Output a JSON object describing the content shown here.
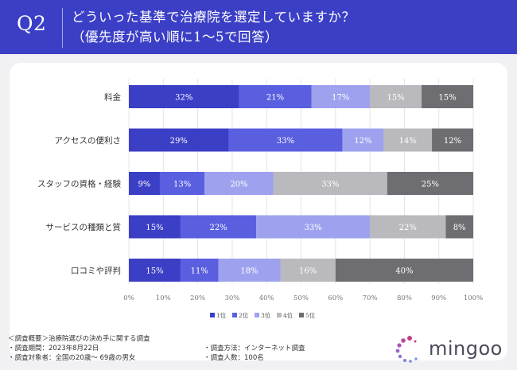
{
  "header": {
    "q_label": "Q2",
    "title_line1": "どういった基準で治療院を選定していますか？",
    "title_line2": "（優先度が高い順に1〜5で回答）"
  },
  "colors": {
    "header_bg": "#3b3fc6",
    "rank1": "#3b3fc6",
    "rank2": "#5a5fe0",
    "rank3": "#9ea2ee",
    "rank4": "#b9b9be",
    "rank5": "#6e6e72"
  },
  "chart_data": {
    "type": "bar",
    "orientation": "horizontal",
    "stacked": true,
    "categories": [
      "料金",
      "アクセスの便利さ",
      "スタッフの資格・経験",
      "サービスの種類と質",
      "口コミや評判"
    ],
    "series": [
      {
        "name": "1位",
        "values": [
          32,
          29,
          9,
          15,
          15
        ]
      },
      {
        "name": "2位",
        "values": [
          21,
          33,
          13,
          22,
          11
        ]
      },
      {
        "name": "3位",
        "values": [
          17,
          12,
          20,
          33,
          18
        ]
      },
      {
        "name": "4位",
        "values": [
          15,
          14,
          33,
          22,
          16
        ]
      },
      {
        "name": "5位",
        "values": [
          15,
          12,
          25,
          8,
          40
        ]
      }
    ],
    "value_suffix": "%",
    "x_ticks": [
      "0%",
      "10%",
      "20%",
      "30%",
      "40%",
      "50%",
      "60%",
      "70%",
      "80%",
      "90%",
      "100%"
    ],
    "xlim": [
      0,
      100
    ],
    "grid": true,
    "legend": "bottom"
  },
  "footer": {
    "line1": "＜調査概要＞治療院選びの決め手に関する調査",
    "line2": "・調査期間：2023年8月22日",
    "line3": "・調査対象者：全国の20歳〜 69歳の男女",
    "line2_right": "・調査方法：インターネット調査",
    "line3_right": "・調査人数：100名"
  },
  "logo": {
    "text": "mingoo"
  }
}
